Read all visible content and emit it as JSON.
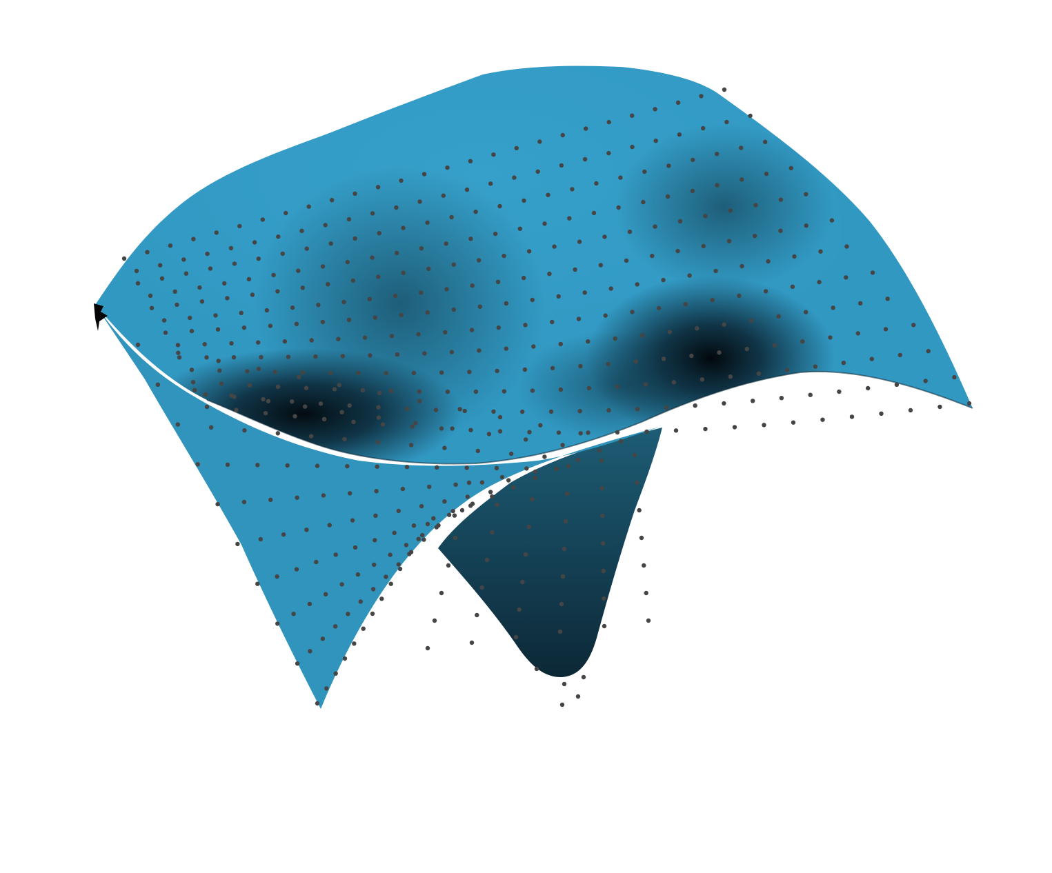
{
  "scene": {
    "background_color": "#ffffff",
    "surface_color": "#349dc6",
    "surface_shadow_color": "#05121a",
    "point_color": "#454545"
  }
}
